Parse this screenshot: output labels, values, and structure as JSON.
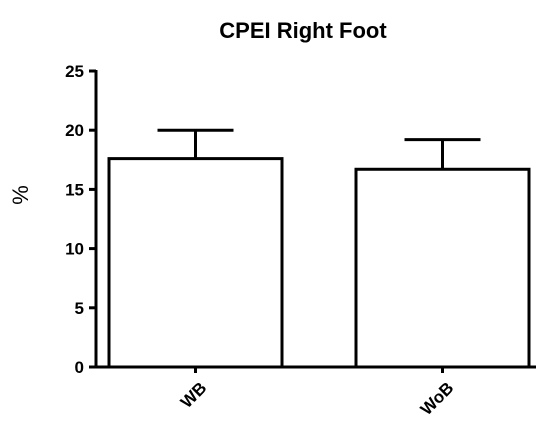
{
  "chart_data": {
    "type": "bar",
    "title": "CPEI Right Foot",
    "xlabel": "",
    "ylabel": "%",
    "categories": [
      "WB",
      "WoB"
    ],
    "values": [
      17.6,
      16.7
    ],
    "error_upper": [
      20.0,
      19.2
    ],
    "ylim": [
      0,
      25
    ],
    "yticks": [
      0,
      5,
      10,
      15,
      20,
      25
    ],
    "ytick_labels": [
      "0",
      "5",
      "10",
      "15",
      "20",
      "25"
    ],
    "grid": false,
    "legend": "none",
    "colors": {
      "bar_fill": "#ffffff",
      "stroke": "#000000"
    }
  }
}
